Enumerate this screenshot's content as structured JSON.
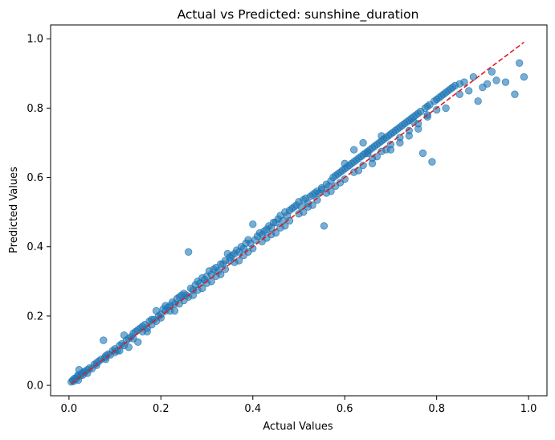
{
  "chart_data": {
    "type": "scatter",
    "title": "Actual vs Predicted: sunshine_duration",
    "xlabel": "Actual Values",
    "ylabel": "Predicted Values",
    "xlim": [
      -0.04,
      1.04
    ],
    "ylim": [
      -0.03,
      1.04
    ],
    "xticks": [
      0.0,
      0.2,
      0.4,
      0.6,
      0.8,
      1.0
    ],
    "yticks": [
      0.0,
      0.2,
      0.4,
      0.6,
      0.8,
      1.0
    ],
    "xtick_labels": [
      "0.0",
      "0.2",
      "0.4",
      "0.6",
      "0.8",
      "1.0"
    ],
    "ytick_labels": [
      "0.0",
      "0.2",
      "0.4",
      "0.6",
      "0.8",
      "1.0"
    ],
    "grid": false,
    "legend": "none",
    "marker_color": "#1f77b4",
    "marker_alpha": 0.6,
    "reference_line": {
      "x": [
        0.005,
        0.99
      ],
      "y": [
        0.005,
        0.99
      ],
      "color": "#e31a1c",
      "style": "dashed"
    },
    "points": [
      [
        0.005,
        0.01
      ],
      [
        0.008,
        0.015
      ],
      [
        0.01,
        0.012
      ],
      [
        0.012,
        0.02
      ],
      [
        0.015,
        0.018
      ],
      [
        0.018,
        0.025
      ],
      [
        0.02,
        0.03
      ],
      [
        0.022,
        0.045
      ],
      [
        0.025,
        0.028
      ],
      [
        0.028,
        0.035
      ],
      [
        0.03,
        0.03
      ],
      [
        0.033,
        0.04
      ],
      [
        0.035,
        0.038
      ],
      [
        0.04,
        0.045
      ],
      [
        0.045,
        0.05
      ],
      [
        0.05,
        0.048
      ],
      [
        0.055,
        0.06
      ],
      [
        0.06,
        0.058
      ],
      [
        0.065,
        0.07
      ],
      [
        0.07,
        0.075
      ],
      [
        0.075,
        0.13
      ],
      [
        0.078,
        0.08
      ],
      [
        0.08,
        0.085
      ],
      [
        0.085,
        0.09
      ],
      [
        0.09,
        0.088
      ],
      [
        0.095,
        0.1
      ],
      [
        0.1,
        0.105
      ],
      [
        0.105,
        0.1
      ],
      [
        0.11,
        0.115
      ],
      [
        0.115,
        0.12
      ],
      [
        0.12,
        0.145
      ],
      [
        0.125,
        0.13
      ],
      [
        0.13,
        0.135
      ],
      [
        0.135,
        0.14
      ],
      [
        0.14,
        0.15
      ],
      [
        0.145,
        0.155
      ],
      [
        0.15,
        0.16
      ],
      [
        0.155,
        0.165
      ],
      [
        0.16,
        0.17
      ],
      [
        0.165,
        0.175
      ],
      [
        0.17,
        0.165
      ],
      [
        0.175,
        0.185
      ],
      [
        0.18,
        0.19
      ],
      [
        0.185,
        0.19
      ],
      [
        0.19,
        0.215
      ],
      [
        0.195,
        0.2
      ],
      [
        0.2,
        0.205
      ],
      [
        0.205,
        0.22
      ],
      [
        0.21,
        0.215
      ],
      [
        0.215,
        0.225
      ],
      [
        0.22,
        0.23
      ],
      [
        0.225,
        0.24
      ],
      [
        0.23,
        0.235
      ],
      [
        0.235,
        0.25
      ],
      [
        0.24,
        0.255
      ],
      [
        0.245,
        0.26
      ],
      [
        0.25,
        0.265
      ],
      [
        0.255,
        0.26
      ],
      [
        0.26,
        0.385
      ],
      [
        0.265,
        0.28
      ],
      [
        0.27,
        0.275
      ],
      [
        0.275,
        0.29
      ],
      [
        0.28,
        0.3
      ],
      [
        0.285,
        0.295
      ],
      [
        0.29,
        0.31
      ],
      [
        0.295,
        0.305
      ],
      [
        0.3,
        0.315
      ],
      [
        0.305,
        0.33
      ],
      [
        0.31,
        0.32
      ],
      [
        0.315,
        0.335
      ],
      [
        0.32,
        0.34
      ],
      [
        0.325,
        0.33
      ],
      [
        0.33,
        0.35
      ],
      [
        0.335,
        0.35
      ],
      [
        0.34,
        0.36
      ],
      [
        0.345,
        0.38
      ],
      [
        0.35,
        0.36
      ],
      [
        0.355,
        0.375
      ],
      [
        0.36,
        0.38
      ],
      [
        0.365,
        0.39
      ],
      [
        0.37,
        0.385
      ],
      [
        0.375,
        0.4
      ],
      [
        0.38,
        0.395
      ],
      [
        0.385,
        0.41
      ],
      [
        0.39,
        0.42
      ],
      [
        0.395,
        0.41
      ],
      [
        0.4,
        0.465
      ],
      [
        0.405,
        0.42
      ],
      [
        0.41,
        0.43
      ],
      [
        0.415,
        0.44
      ],
      [
        0.42,
        0.435
      ],
      [
        0.425,
        0.445
      ],
      [
        0.43,
        0.45
      ],
      [
        0.435,
        0.46
      ],
      [
        0.44,
        0.455
      ],
      [
        0.445,
        0.47
      ],
      [
        0.45,
        0.44
      ],
      [
        0.455,
        0.48
      ],
      [
        0.46,
        0.49
      ],
      [
        0.465,
        0.475
      ],
      [
        0.47,
        0.5
      ],
      [
        0.475,
        0.49
      ],
      [
        0.48,
        0.505
      ],
      [
        0.485,
        0.51
      ],
      [
        0.49,
        0.515
      ],
      [
        0.495,
        0.52
      ],
      [
        0.5,
        0.53
      ],
      [
        0.505,
        0.515
      ],
      [
        0.51,
        0.535
      ],
      [
        0.515,
        0.54
      ],
      [
        0.52,
        0.525
      ],
      [
        0.525,
        0.545
      ],
      [
        0.53,
        0.55
      ],
      [
        0.535,
        0.555
      ],
      [
        0.54,
        0.56
      ],
      [
        0.545,
        0.555
      ],
      [
        0.55,
        0.565
      ],
      [
        0.555,
        0.46
      ],
      [
        0.56,
        0.58
      ],
      [
        0.565,
        0.575
      ],
      [
        0.57,
        0.59
      ],
      [
        0.575,
        0.6
      ],
      [
        0.58,
        0.605
      ],
      [
        0.585,
        0.61
      ],
      [
        0.59,
        0.615
      ],
      [
        0.595,
        0.62
      ],
      [
        0.6,
        0.625
      ],
      [
        0.605,
        0.63
      ],
      [
        0.61,
        0.635
      ],
      [
        0.615,
        0.64
      ],
      [
        0.62,
        0.645
      ],
      [
        0.625,
        0.65
      ],
      [
        0.63,
        0.655
      ],
      [
        0.635,
        0.66
      ],
      [
        0.64,
        0.665
      ],
      [
        0.645,
        0.67
      ],
      [
        0.65,
        0.675
      ],
      [
        0.655,
        0.68
      ],
      [
        0.66,
        0.685
      ],
      [
        0.665,
        0.69
      ],
      [
        0.67,
        0.695
      ],
      [
        0.675,
        0.7
      ],
      [
        0.68,
        0.705
      ],
      [
        0.685,
        0.71
      ],
      [
        0.69,
        0.715
      ],
      [
        0.695,
        0.72
      ],
      [
        0.7,
        0.725
      ],
      [
        0.705,
        0.73
      ],
      [
        0.71,
        0.735
      ],
      [
        0.715,
        0.74
      ],
      [
        0.72,
        0.745
      ],
      [
        0.725,
        0.75
      ],
      [
        0.73,
        0.755
      ],
      [
        0.735,
        0.76
      ],
      [
        0.74,
        0.765
      ],
      [
        0.745,
        0.77
      ],
      [
        0.75,
        0.775
      ],
      [
        0.755,
        0.78
      ],
      [
        0.76,
        0.785
      ],
      [
        0.765,
        0.79
      ],
      [
        0.77,
        0.67
      ],
      [
        0.775,
        0.8
      ],
      [
        0.78,
        0.805
      ],
      [
        0.785,
        0.81
      ],
      [
        0.79,
        0.645
      ],
      [
        0.795,
        0.82
      ],
      [
        0.8,
        0.825
      ],
      [
        0.805,
        0.83
      ],
      [
        0.81,
        0.835
      ],
      [
        0.815,
        0.84
      ],
      [
        0.82,
        0.845
      ],
      [
        0.825,
        0.85
      ],
      [
        0.83,
        0.855
      ],
      [
        0.835,
        0.86
      ],
      [
        0.84,
        0.865
      ],
      [
        0.85,
        0.87
      ],
      [
        0.86,
        0.875
      ],
      [
        0.87,
        0.85
      ],
      [
        0.88,
        0.89
      ],
      [
        0.89,
        0.82
      ],
      [
        0.9,
        0.86
      ],
      [
        0.91,
        0.87
      ],
      [
        0.92,
        0.905
      ],
      [
        0.93,
        0.88
      ],
      [
        0.95,
        0.875
      ],
      [
        0.97,
        0.84
      ],
      [
        0.98,
        0.93
      ],
      [
        0.99,
        0.89
      ],
      [
        0.02,
        0.015
      ],
      [
        0.04,
        0.035
      ],
      [
        0.06,
        0.065
      ],
      [
        0.08,
        0.075
      ],
      [
        0.1,
        0.095
      ],
      [
        0.12,
        0.115
      ],
      [
        0.14,
        0.135
      ],
      [
        0.16,
        0.155
      ],
      [
        0.18,
        0.175
      ],
      [
        0.2,
        0.195
      ],
      [
        0.22,
        0.215
      ],
      [
        0.24,
        0.235
      ],
      [
        0.26,
        0.255
      ],
      [
        0.28,
        0.275
      ],
      [
        0.3,
        0.295
      ],
      [
        0.32,
        0.315
      ],
      [
        0.34,
        0.335
      ],
      [
        0.36,
        0.355
      ],
      [
        0.38,
        0.375
      ],
      [
        0.4,
        0.395
      ],
      [
        0.42,
        0.415
      ],
      [
        0.44,
        0.435
      ],
      [
        0.46,
        0.455
      ],
      [
        0.48,
        0.475
      ],
      [
        0.5,
        0.495
      ],
      [
        0.52,
        0.515
      ],
      [
        0.54,
        0.535
      ],
      [
        0.56,
        0.555
      ],
      [
        0.58,
        0.575
      ],
      [
        0.6,
        0.595
      ],
      [
        0.62,
        0.615
      ],
      [
        0.64,
        0.635
      ],
      [
        0.66,
        0.655
      ],
      [
        0.68,
        0.675
      ],
      [
        0.7,
        0.695
      ],
      [
        0.72,
        0.715
      ],
      [
        0.74,
        0.735
      ],
      [
        0.76,
        0.755
      ],
      [
        0.78,
        0.775
      ],
      [
        0.8,
        0.795
      ],
      [
        0.13,
        0.11
      ],
      [
        0.15,
        0.125
      ],
      [
        0.17,
        0.155
      ],
      [
        0.19,
        0.185
      ],
      [
        0.23,
        0.215
      ],
      [
        0.27,
        0.26
      ],
      [
        0.29,
        0.28
      ],
      [
        0.31,
        0.3
      ],
      [
        0.33,
        0.32
      ],
      [
        0.37,
        0.36
      ],
      [
        0.39,
        0.385
      ],
      [
        0.43,
        0.425
      ],
      [
        0.47,
        0.46
      ],
      [
        0.51,
        0.5
      ],
      [
        0.53,
        0.52
      ],
      [
        0.57,
        0.56
      ],
      [
        0.59,
        0.585
      ],
      [
        0.63,
        0.62
      ],
      [
        0.67,
        0.66
      ],
      [
        0.69,
        0.68
      ],
      [
        0.11,
        0.1
      ],
      [
        0.21,
        0.23
      ],
      [
        0.25,
        0.245
      ],
      [
        0.35,
        0.37
      ],
      [
        0.45,
        0.47
      ],
      [
        0.55,
        0.57
      ],
      [
        0.65,
        0.67
      ],
      [
        0.75,
        0.76
      ],
      [
        0.85,
        0.84
      ],
      [
        0.6,
        0.64
      ],
      [
        0.62,
        0.68
      ],
      [
        0.64,
        0.7
      ],
      [
        0.66,
        0.64
      ],
      [
        0.68,
        0.72
      ],
      [
        0.7,
        0.68
      ],
      [
        0.72,
        0.7
      ],
      [
        0.74,
        0.72
      ],
      [
        0.76,
        0.74
      ],
      [
        0.78,
        0.78
      ],
      [
        0.82,
        0.8
      ]
    ]
  }
}
